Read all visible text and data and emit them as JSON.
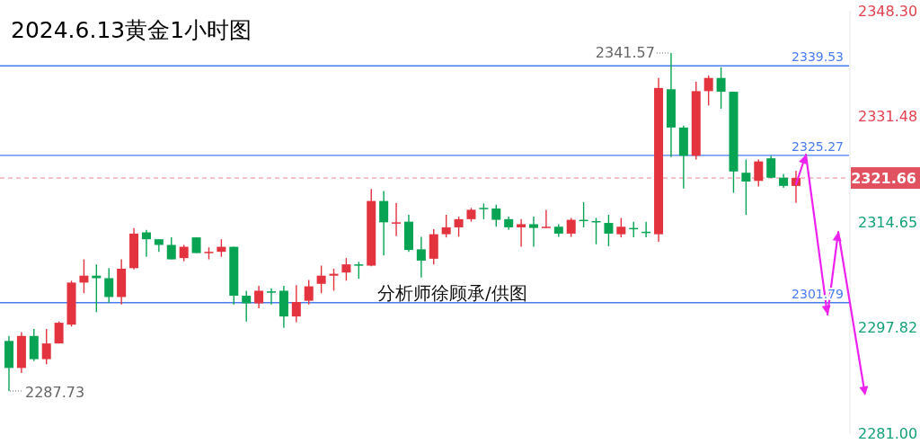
{
  "chart_data": {
    "type": "candlestick",
    "title": "2024.6.13黄金1小时图",
    "categories": [
      null,
      null,
      null,
      null,
      null,
      null,
      null,
      null,
      null,
      null,
      null,
      null,
      null,
      null,
      null,
      null,
      null,
      null,
      null,
      null,
      null,
      null,
      null,
      null,
      null,
      null,
      null,
      null,
      null,
      null,
      null,
      null,
      null,
      null,
      null,
      null,
      null,
      null,
      null,
      null,
      null,
      null,
      null,
      null,
      null,
      null,
      null,
      null,
      null,
      null,
      null,
      null,
      null,
      null,
      null,
      null,
      null,
      null,
      null,
      null,
      null,
      null,
      null,
      null
    ],
    "ohlc": [
      [
        2295.7,
        2296.5,
        2287.73,
        2291.4
      ],
      [
        2291.4,
        2297.1,
        2290.6,
        2296.5
      ],
      [
        2296.5,
        2297.6,
        2292.5,
        2292.8
      ],
      [
        2292.8,
        2297.6,
        2292.0,
        2295.3
      ],
      [
        2295.3,
        2298.8,
        2295.3,
        2298.6
      ],
      [
        2298.3,
        2305.3,
        2298.0,
        2305.0
      ],
      [
        2305.0,
        2308.7,
        2303.3,
        2306.1
      ],
      [
        2306.1,
        2307.9,
        2300.3,
        2305.7
      ],
      [
        2305.7,
        2307.3,
        2301.8,
        2302.7
      ],
      [
        2302.7,
        2308.7,
        2301.5,
        2307.2
      ],
      [
        2307.3,
        2313.7,
        2307.1,
        2312.8
      ],
      [
        2313.0,
        2313.4,
        2309.1,
        2311.9
      ],
      [
        2311.9,
        2311.9,
        2309.9,
        2311.0
      ],
      [
        2311.0,
        2312.2,
        2308.7,
        2308.7
      ],
      [
        2308.9,
        2311.0,
        2308.4,
        2310.7
      ],
      [
        2312.2,
        2312.2,
        2309.7,
        2309.7
      ],
      [
        2309.8,
        2310.6,
        2308.7,
        2309.9
      ],
      [
        2309.9,
        2311.9,
        2309.1,
        2310.7
      ],
      [
        2310.7,
        2310.7,
        2301.5,
        2302.9
      ],
      [
        2302.9,
        2303.7,
        2298.8,
        2301.7
      ],
      [
        2301.7,
        2304.5,
        2300.9,
        2303.7
      ],
      [
        2303.6,
        2304.1,
        2301.5,
        2303.5
      ],
      [
        2303.7,
        2304.5,
        2297.8,
        2299.6
      ],
      [
        2299.6,
        2304.6,
        2298.7,
        2301.9
      ],
      [
        2302.1,
        2305.4,
        2301.5,
        2304.4
      ],
      [
        2304.8,
        2307.7,
        2303.3,
        2306.1
      ],
      [
        2306.1,
        2307.2,
        2303.7,
        2306.4
      ],
      [
        2306.6,
        2308.9,
        2305.3,
        2307.9
      ],
      [
        2307.9,
        2308.3,
        2305.6,
        2307.8
      ],
      [
        2307.7,
        2319.9,
        2307.6,
        2318.0
      ],
      [
        2318.0,
        2319.6,
        2309.3,
        2314.6
      ],
      [
        2314.5,
        2317.7,
        2312.4,
        2314.6
      ],
      [
        2314.7,
        2315.8,
        2309.9,
        2310.2
      ],
      [
        2310.3,
        2312.3,
        2305.8,
        2308.5
      ],
      [
        2308.8,
        2313.5,
        2307.9,
        2312.7
      ],
      [
        2312.7,
        2315.8,
        2312.2,
        2313.8
      ],
      [
        2313.8,
        2315.5,
        2312.3,
        2315.1
      ],
      [
        2315.1,
        2316.9,
        2314.7,
        2316.6
      ],
      [
        2316.9,
        2317.6,
        2315.1,
        2316.8
      ],
      [
        2316.8,
        2317.4,
        2313.9,
        2315.0
      ],
      [
        2315.1,
        2315.5,
        2313.4,
        2313.8
      ],
      [
        2313.8,
        2315.1,
        2310.7,
        2314.3
      ],
      [
        2314.3,
        2315.5,
        2310.7,
        2313.7
      ],
      [
        2313.7,
        2316.6,
        2313.7,
        2313.9
      ],
      [
        2313.9,
        2314.3,
        2312.3,
        2312.8
      ],
      [
        2312.8,
        2315.3,
        2312.3,
        2315.0
      ],
      [
        2315.0,
        2317.8,
        2313.8,
        2314.9
      ],
      [
        2314.8,
        2315.3,
        2311.1,
        2314.6
      ],
      [
        2314.5,
        2315.8,
        2310.8,
        2312.8
      ],
      [
        2312.7,
        2315.3,
        2312.2,
        2313.9
      ],
      [
        2313.7,
        2314.7,
        2312.2,
        2313.6
      ],
      [
        2313.1,
        2314.7,
        2312.2,
        2313.0
      ],
      [
        2312.7,
        2337.6,
        2311.5,
        2336.0
      ],
      [
        2335.8,
        2341.57,
        2325.0,
        2329.7
      ],
      [
        2329.7,
        2330.0,
        2320.0,
        2325.2
      ],
      [
        2325.2,
        2337.0,
        2324.6,
        2335.5
      ],
      [
        2335.5,
        2338.0,
        2333.2,
        2337.6
      ],
      [
        2337.6,
        2339.3,
        2332.7,
        2335.4
      ],
      [
        2335.4,
        2335.4,
        2319.3,
        2322.7
      ],
      [
        2322.5,
        2324.6,
        2315.8,
        2321.1
      ],
      [
        2321.2,
        2324.6,
        2320.3,
        2324.3
      ],
      [
        2324.8,
        2325.2,
        2321.7,
        2321.7
      ],
      [
        2321.7,
        2322.3,
        2320.1,
        2320.4
      ],
      [
        2320.4,
        2322.8,
        2317.7,
        2321.66
      ]
    ],
    "ylim": [
      2281.0,
      2348.3
    ],
    "yticks": [
      {
        "value": 2348.3,
        "label": "2348.30"
      },
      {
        "value": 2331.48,
        "label": "2331.48"
      },
      {
        "value": 2314.65,
        "label": "2314.65"
      },
      {
        "value": 2297.82,
        "label": "2297.82"
      },
      {
        "value": 2281.0,
        "label": "2281.00"
      }
    ],
    "tick_labels": "y",
    "ref_lines": [
      {
        "axis": "y",
        "value": 2339.53,
        "label": "2339.53",
        "color": "#4a7cf0"
      },
      {
        "axis": "y",
        "value": 2325.27,
        "label": "2325.27",
        "color": "#4a7cf0"
      },
      {
        "axis": "y",
        "value": 2301.79,
        "label": "2301.79",
        "color": "#4a7cf0"
      },
      {
        "axis": "y",
        "value": 2321.66,
        "label": "2321.66",
        "color": "#e05260",
        "line_style": "dashed"
      }
    ],
    "annotations": [
      "2341.57",
      "2287.73",
      "分析师徐顾承/供图"
    ]
  }
}
